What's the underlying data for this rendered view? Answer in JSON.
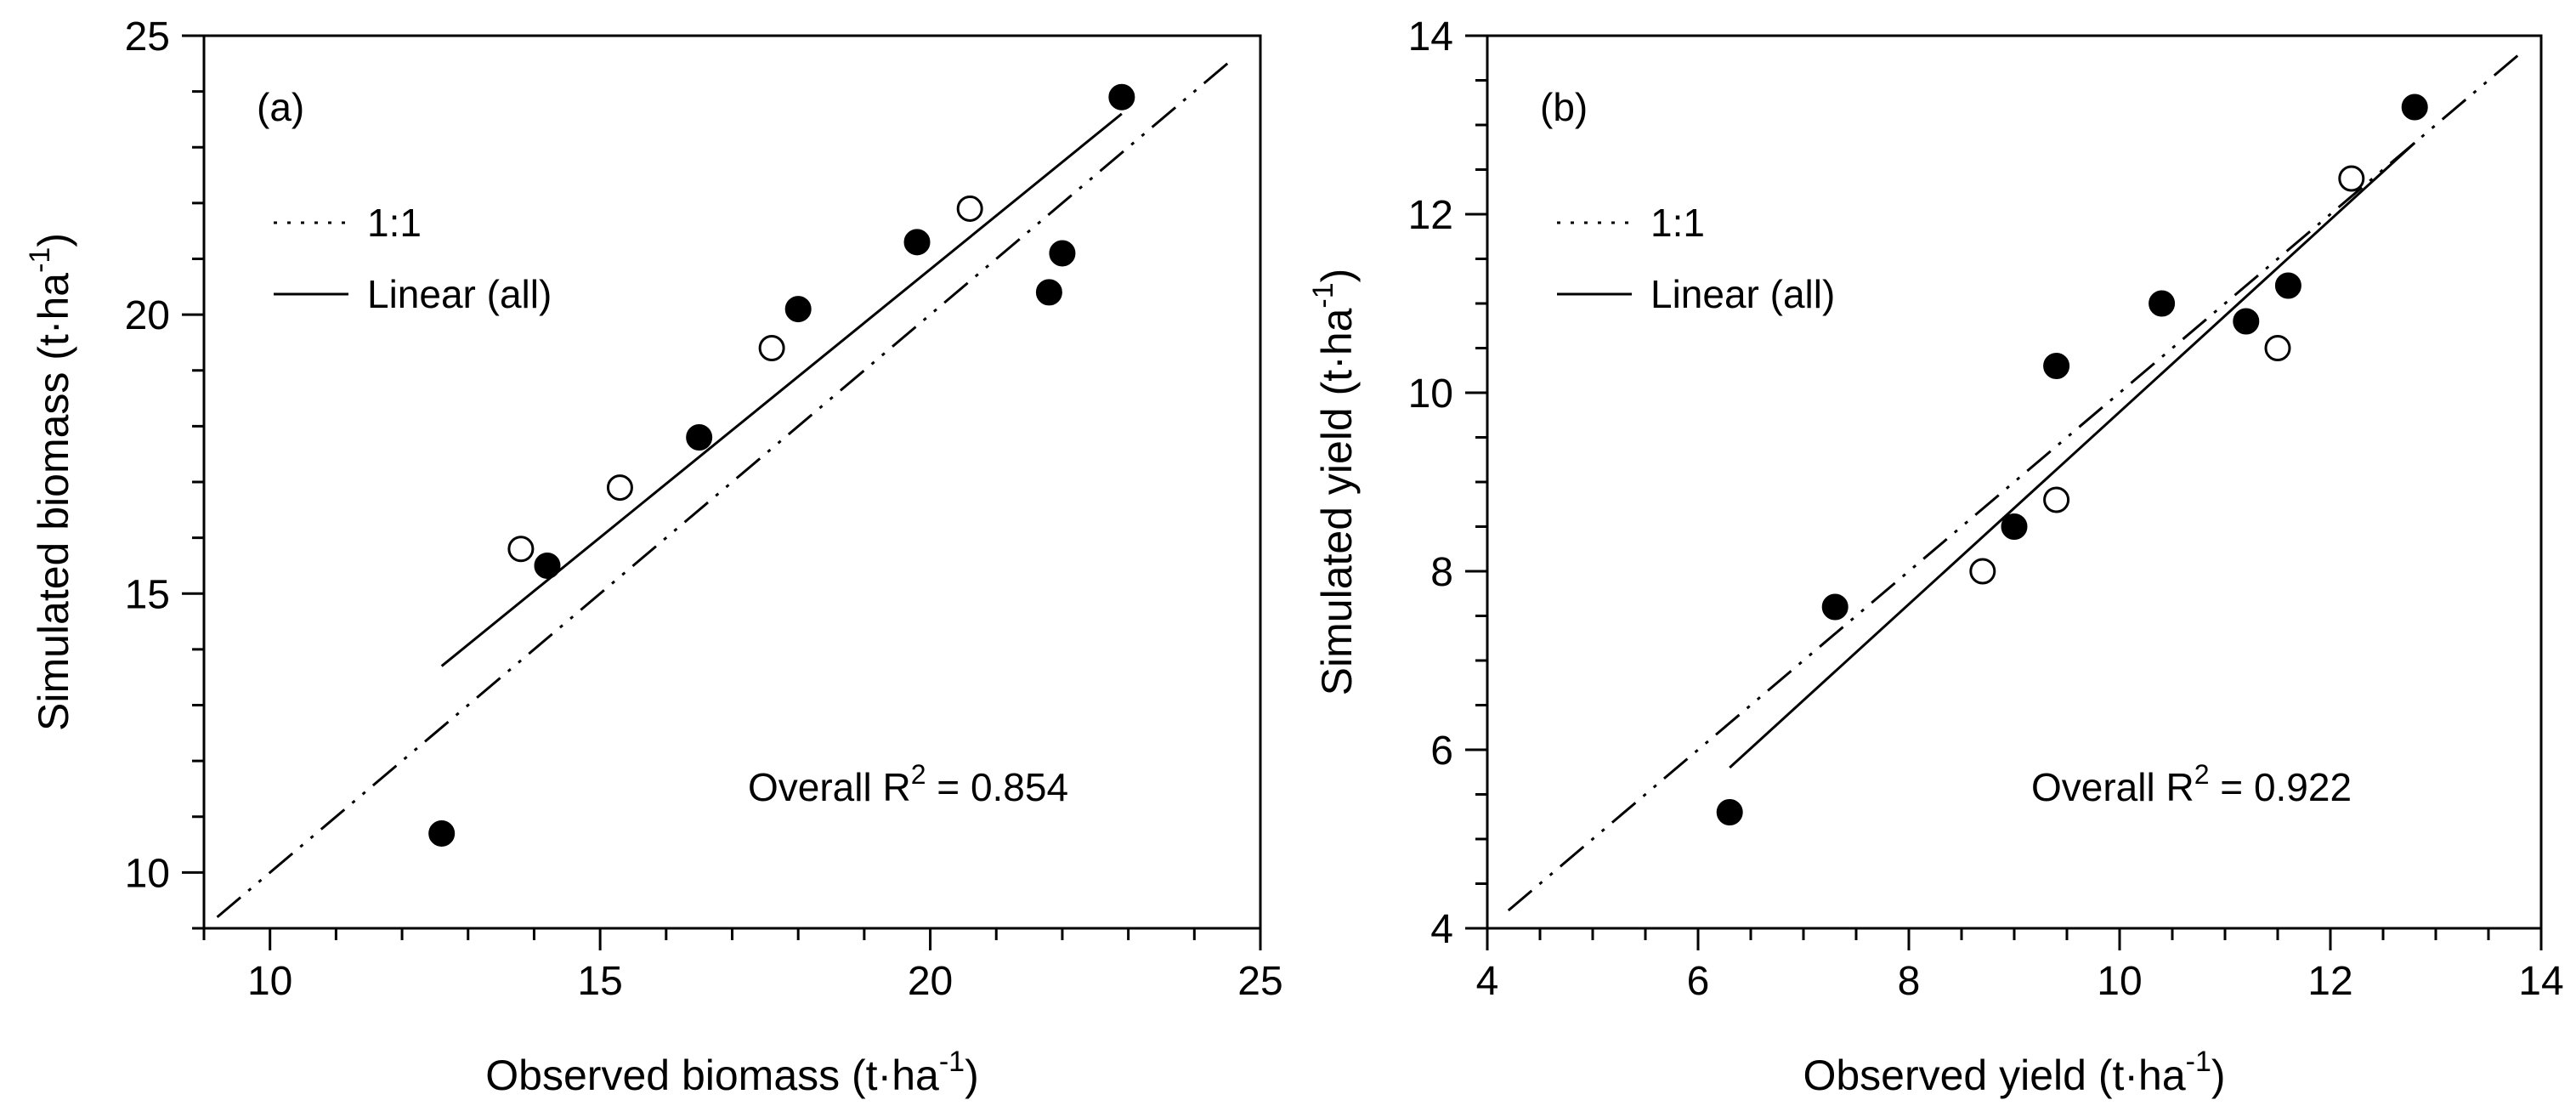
{
  "chart_data": [
    {
      "type": "scatter",
      "panel_label": "(a)",
      "xlabel": "Observed biomass (t·ha",
      "ylabel": "Simulated biomass (t·ha",
      "unit_exponent": "-1",
      "xlim": [
        9,
        25
      ],
      "ylim": [
        9,
        25
      ],
      "x_ticks": [
        "10",
        "15",
        "20",
        "25"
      ],
      "y_ticks": [
        "10",
        "15",
        "20",
        "25"
      ],
      "legend": [
        {
          "label": "1:1",
          "style": "dash-dot-dot"
        },
        {
          "label": "Linear (all)",
          "style": "solid"
        }
      ],
      "annotation": {
        "prefix": "Overall R",
        "sup": "2",
        "suffix": " = 0.854",
        "value": 0.854
      },
      "series": [
        {
          "name": "filled",
          "marker": "filled-circle",
          "points": [
            [
              12.6,
              10.7
            ],
            [
              14.2,
              15.5
            ],
            [
              16.5,
              17.8
            ],
            [
              18.0,
              20.1
            ],
            [
              19.8,
              21.3
            ],
            [
              21.8,
              20.4
            ],
            [
              22.0,
              21.1
            ],
            [
              22.9,
              23.9
            ]
          ]
        },
        {
          "name": "open",
          "marker": "open-circle",
          "points": [
            [
              13.8,
              15.8
            ],
            [
              15.3,
              16.9
            ],
            [
              17.6,
              19.4
            ],
            [
              20.6,
              21.9
            ]
          ]
        }
      ],
      "one_to_one": [
        [
          9.2,
          9.2
        ],
        [
          24.6,
          24.6
        ]
      ],
      "fit_line": [
        [
          12.6,
          13.7
        ],
        [
          22.9,
          23.6
        ]
      ]
    },
    {
      "type": "scatter",
      "panel_label": "(b)",
      "xlabel": "Observed yield (t·ha",
      "ylabel": "Simulated yield (t·ha",
      "unit_exponent": "-1",
      "xlim": [
        4,
        14
      ],
      "ylim": [
        4,
        14
      ],
      "x_ticks": [
        "4",
        "6",
        "8",
        "10",
        "12",
        "14"
      ],
      "y_ticks": [
        "4",
        "6",
        "8",
        "10",
        "12",
        "14"
      ],
      "legend": [
        {
          "label": "1:1",
          "style": "dash-dot-dot"
        },
        {
          "label": "Linear (all)",
          "style": "solid"
        }
      ],
      "annotation": {
        "prefix": "Overall R",
        "sup": "2",
        "suffix": " = 0.922",
        "value": 0.922
      },
      "series": [
        {
          "name": "filled",
          "marker": "filled-circle",
          "points": [
            [
              6.3,
              5.3
            ],
            [
              7.3,
              7.6
            ],
            [
              9.0,
              8.5
            ],
            [
              9.4,
              10.3
            ],
            [
              10.4,
              11.0
            ],
            [
              11.2,
              10.8
            ],
            [
              11.6,
              11.2
            ],
            [
              12.8,
              13.2
            ]
          ]
        },
        {
          "name": "open",
          "marker": "open-circle",
          "points": [
            [
              8.7,
              8.0
            ],
            [
              9.4,
              8.8
            ],
            [
              11.5,
              10.5
            ],
            [
              12.2,
              12.4
            ]
          ]
        }
      ],
      "one_to_one": [
        [
          4.2,
          4.2
        ],
        [
          13.8,
          13.8
        ]
      ],
      "fit_line": [
        [
          6.3,
          5.8
        ],
        [
          12.8,
          12.8
        ]
      ]
    }
  ]
}
